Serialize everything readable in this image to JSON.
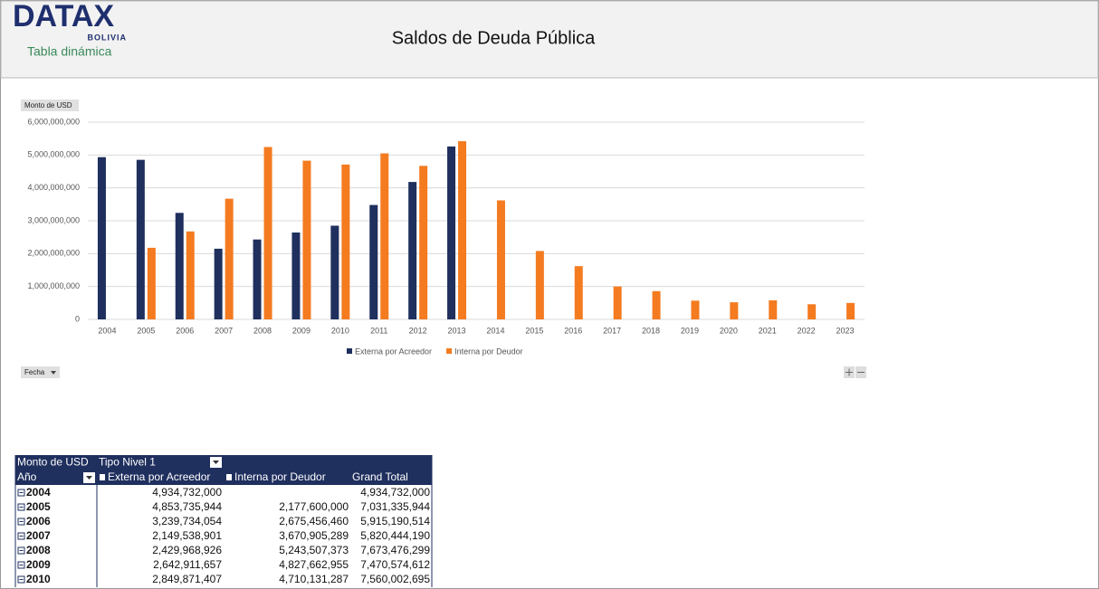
{
  "header": {
    "logo": "DATAX",
    "logo_sub": "BOLIVIA",
    "subtitle": "Tabla dinámica",
    "title": "Saldos de Deuda Pública"
  },
  "controls": {
    "value_field": "Monto de USD",
    "axis_field": "Fecha"
  },
  "chart_data": {
    "type": "bar",
    "categories": [
      "2004",
      "2005",
      "2006",
      "2007",
      "2008",
      "2009",
      "2010",
      "2011",
      "2012",
      "2013",
      "2014",
      "2015",
      "2016",
      "2017",
      "2018",
      "2019",
      "2020",
      "2021",
      "2022",
      "2023"
    ],
    "series": [
      {
        "name": "Externa por Acreedor",
        "color": "#1f2f5e",
        "values": [
          4934732000,
          4853735944,
          3239734054,
          2149538901,
          2429968926,
          2642911657,
          2849871407,
          3480000000,
          4180000000,
          5260000000,
          null,
          null,
          null,
          null,
          null,
          null,
          null,
          null,
          null,
          null
        ]
      },
      {
        "name": "Interna por Deudor",
        "color": "#f47b20",
        "values": [
          null,
          2177600000,
          2675456460,
          3670905289,
          5243507373,
          4827662955,
          4710131287,
          5050000000,
          4670000000,
          5420000000,
          3620000000,
          2080000000,
          1620000000,
          1000000000,
          860000000,
          570000000,
          520000000,
          580000000,
          460000000,
          500000000
        ]
      }
    ],
    "ylim": [
      0,
      6000000000
    ],
    "yticks": [
      0,
      {
        "value": 1000000000,
        "label": "1,000,000,000"
      },
      {
        "value": 2000000000,
        "label": "2,000,000,000"
      },
      {
        "value": 3000000000,
        "label": "3,000,000,000"
      },
      {
        "value": 4000000000,
        "label": "4,000,000,000"
      },
      {
        "value": 5000000000,
        "label": "5,000,000,000"
      },
      {
        "value": 6000000000,
        "label": "6,000,000,000"
      }
    ],
    "grid": true,
    "legend": "bottom"
  },
  "table": {
    "header": [
      [
        "Monto de USD",
        "Tipo Nivel 1"
      ],
      [
        "Año",
        "Externa por Acreedor",
        "Interna por Deudor",
        "Grand Total"
      ]
    ],
    "rows": [
      [
        "2004",
        "4,934,732,000",
        null,
        "4,934,732,000"
      ],
      [
        "2005",
        "4,853,735,944",
        "2,177,600,000",
        "7,031,335,944"
      ],
      [
        "2006",
        "3,239,734,054",
        "2,675,456,460",
        "5,915,190,514"
      ],
      [
        "2007",
        "2,149,538,901",
        "3,670,905,289",
        "5,820,444,190"
      ],
      [
        "2008",
        "2,429,968,926",
        "5,243,507,373",
        "7,673,476,299"
      ],
      [
        "2009",
        "2,642,911,657",
        "4,827,662,955",
        "7,470,574,612"
      ],
      [
        "2010",
        "2,849,871,407",
        "4,710,131,287",
        "7,560,002,695"
      ]
    ]
  }
}
